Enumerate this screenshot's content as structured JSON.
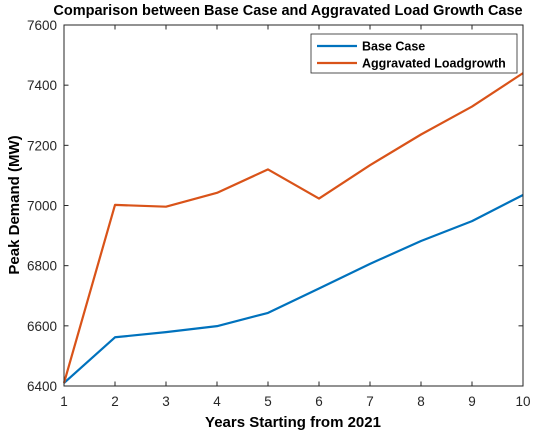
{
  "chart_data": {
    "type": "line",
    "title": "Comparison between Base Case and Aggravated Load Growth Case",
    "xlabel": "Years Starting from 2021",
    "ylabel": "Peak Demand (MW)",
    "xlim": [
      1,
      10
    ],
    "ylim": [
      6400,
      7600
    ],
    "xticks": [
      1,
      2,
      3,
      4,
      5,
      6,
      7,
      8,
      9,
      10
    ],
    "yticks": [
      6400,
      6600,
      6800,
      7000,
      7200,
      7400,
      7600
    ],
    "x": [
      1,
      2,
      3,
      4,
      5,
      6,
      7,
      8,
      9,
      10
    ],
    "series": [
      {
        "name": "Base Case",
        "color": "#0072BD",
        "values": [
          6410,
          6562,
          6579,
          6599,
          6643,
          6724,
          6806,
          6882,
          6948,
          7035
        ]
      },
      {
        "name": "Aggravated Loadgrowth",
        "color": "#D95319",
        "values": [
          6410,
          7002,
          6996,
          7042,
          7120,
          7023,
          7134,
          7236,
          7329,
          7440
        ]
      }
    ],
    "grid": false,
    "legend_position": "top-right"
  }
}
